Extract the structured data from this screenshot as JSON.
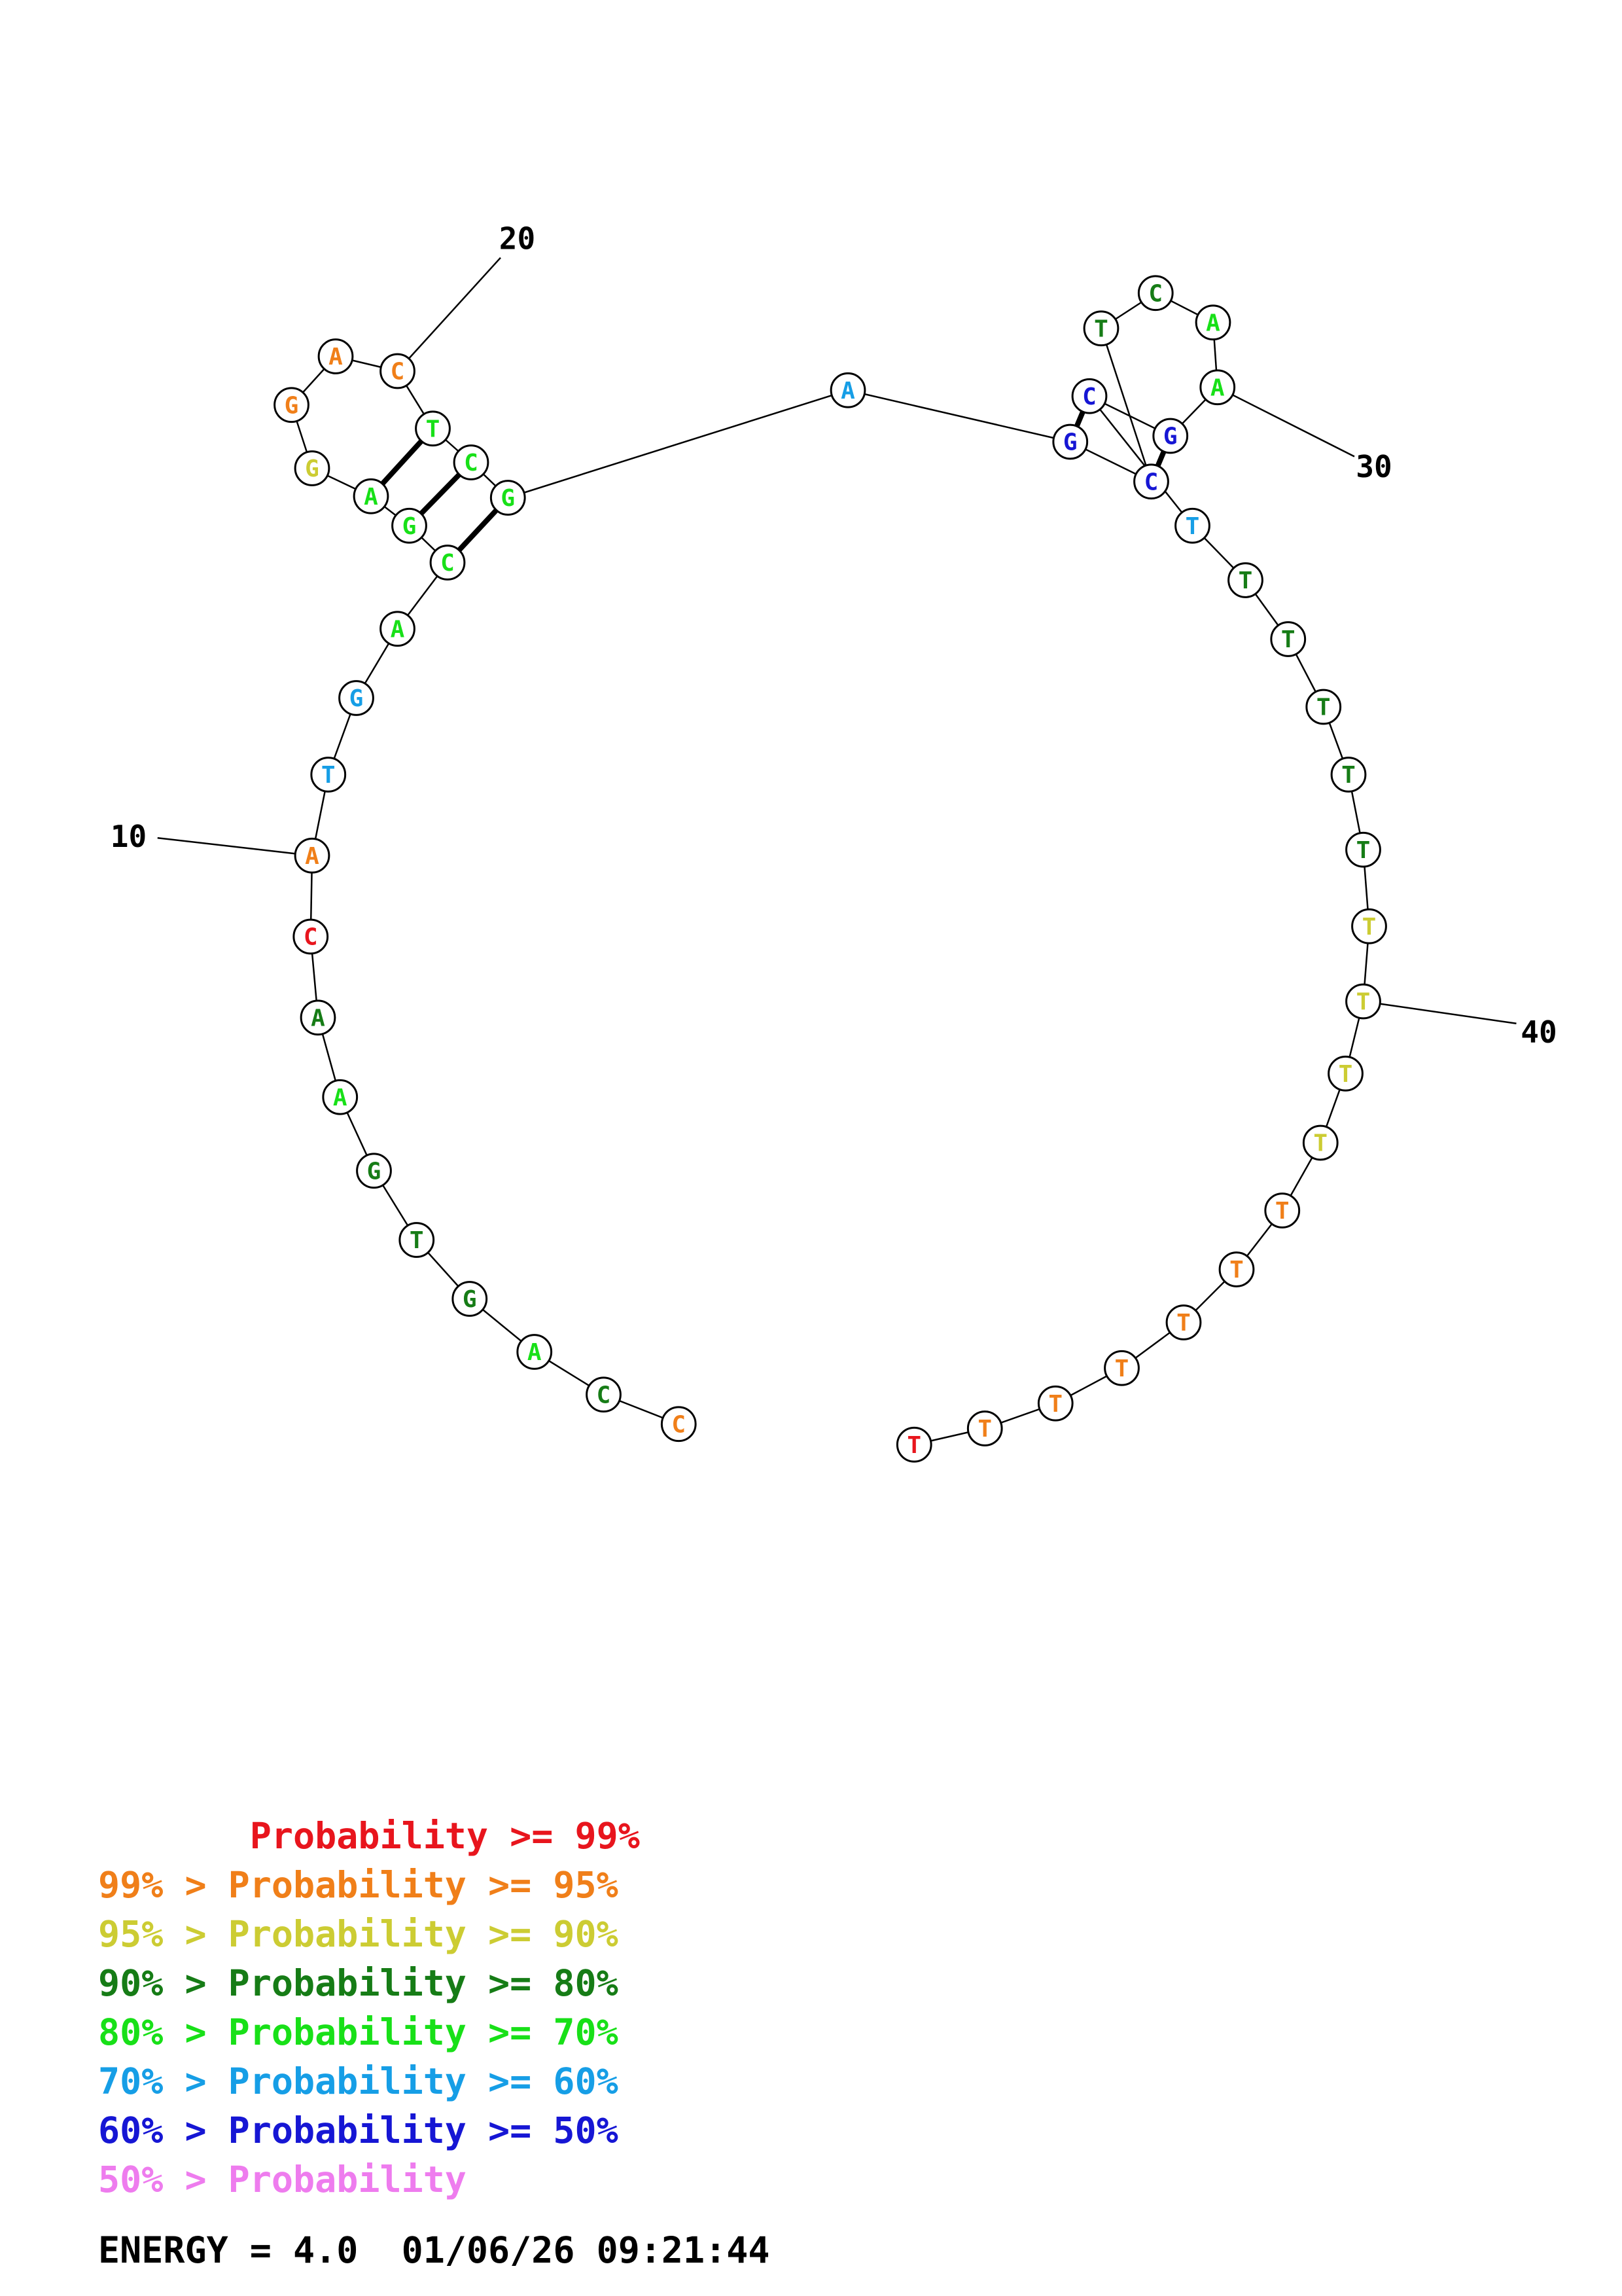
{
  "colors": {
    "p99": "#e8151d",
    "p95": "#f07f19",
    "p90": "#cccc33",
    "p80": "#167c16",
    "p70": "#18e018",
    "p60": "#169ee6",
    "p50": "#1616d4",
    "plow": "#ee7cee"
  },
  "nucleotides": [
    {
      "i": 1,
      "base": "C",
      "c": "p95"
    },
    {
      "i": 2,
      "base": "C",
      "c": "p80"
    },
    {
      "i": 3,
      "base": "A",
      "c": "p70"
    },
    {
      "i": 4,
      "base": "G",
      "c": "p80"
    },
    {
      "i": 5,
      "base": "T",
      "c": "p80"
    },
    {
      "i": 6,
      "base": "G",
      "c": "p80"
    },
    {
      "i": 7,
      "base": "A",
      "c": "p70"
    },
    {
      "i": 8,
      "base": "A",
      "c": "p80"
    },
    {
      "i": 9,
      "base": "C",
      "c": "p99"
    },
    {
      "i": 10,
      "base": "A",
      "c": "p95"
    },
    {
      "i": 11,
      "base": "T",
      "c": "p60"
    },
    {
      "i": 12,
      "base": "G",
      "c": "p60"
    },
    {
      "i": 13,
      "base": "A",
      "c": "p70"
    },
    {
      "i": 14,
      "base": "C",
      "c": "p70"
    },
    {
      "i": 15,
      "base": "G",
      "c": "p70"
    },
    {
      "i": 16,
      "base": "A",
      "c": "p70"
    },
    {
      "i": 17,
      "base": "G",
      "c": "p90"
    },
    {
      "i": 18,
      "base": "G",
      "c": "p95"
    },
    {
      "i": 19,
      "base": "A",
      "c": "p95"
    },
    {
      "i": 20,
      "base": "C",
      "c": "p95"
    },
    {
      "i": 21,
      "base": "T",
      "c": "p70"
    },
    {
      "i": 22,
      "base": "C",
      "c": "p70"
    },
    {
      "i": 23,
      "base": "G",
      "c": "p70"
    },
    {
      "i": 24,
      "base": "A",
      "c": "p60"
    },
    {
      "i": 25,
      "base": "G",
      "c": "p50"
    },
    {
      "i": 26,
      "base": "C",
      "c": "p50"
    },
    {
      "i": 27,
      "base": "T",
      "c": "p80"
    },
    {
      "i": 28,
      "base": "C",
      "c": "p80"
    },
    {
      "i": 29,
      "base": "A",
      "c": "p70"
    },
    {
      "i": 30,
      "base": "A",
      "c": "p70"
    },
    {
      "i": 31,
      "base": "G",
      "c": "p50"
    },
    {
      "i": 32,
      "base": "C",
      "c": "p50"
    },
    {
      "i": 33,
      "base": "T",
      "c": "p60"
    },
    {
      "i": 34,
      "base": "T",
      "c": "p80"
    },
    {
      "i": 35,
      "base": "T",
      "c": "p80"
    },
    {
      "i": 36,
      "base": "T",
      "c": "p80"
    },
    {
      "i": 37,
      "base": "T",
      "c": "p80"
    },
    {
      "i": 38,
      "base": "T",
      "c": "p80"
    },
    {
      "i": 39,
      "base": "T",
      "c": "p90"
    },
    {
      "i": 40,
      "base": "T",
      "c": "p90"
    },
    {
      "i": 41,
      "base": "T",
      "c": "p90"
    },
    {
      "i": 42,
      "base": "T",
      "c": "p90"
    },
    {
      "i": 43,
      "base": "T",
      "c": "p95"
    },
    {
      "i": 44,
      "base": "T",
      "c": "p95"
    },
    {
      "i": 45,
      "base": "T",
      "c": "p95"
    },
    {
      "i": 46,
      "base": "T",
      "c": "p95"
    },
    {
      "i": 47,
      "base": "T",
      "c": "p95"
    },
    {
      "i": 48,
      "base": "T",
      "c": "p95"
    },
    {
      "i": 49,
      "base": "T",
      "c": "p99"
    }
  ],
  "pairs": [
    [
      14,
      23
    ],
    [
      15,
      22
    ],
    [
      16,
      21
    ],
    [
      25,
      32
    ],
    [
      26,
      31
    ]
  ],
  "tick_labels": [
    "10",
    "20",
    "30",
    "40"
  ],
  "legend": [
    {
      "text": "       Probability >= 99%",
      "c": "p99"
    },
    {
      "text": "99% > Probability >= 95%",
      "c": "p95"
    },
    {
      "text": "95% > Probability >= 90%",
      "c": "p90"
    },
    {
      "text": "90% > Probability >= 80%",
      "c": "p80"
    },
    {
      "text": "80% > Probability >= 70%",
      "c": "p70"
    },
    {
      "text": "70% > Probability >= 60%",
      "c": "p60"
    },
    {
      "text": "60% > Probability >= 50%",
      "c": "p50"
    },
    {
      "text": "50% > Probability",
      "c": "plow"
    }
  ],
  "footer": {
    "energy": "ENERGY = 4.0  01/06/26 09:21:44"
  }
}
